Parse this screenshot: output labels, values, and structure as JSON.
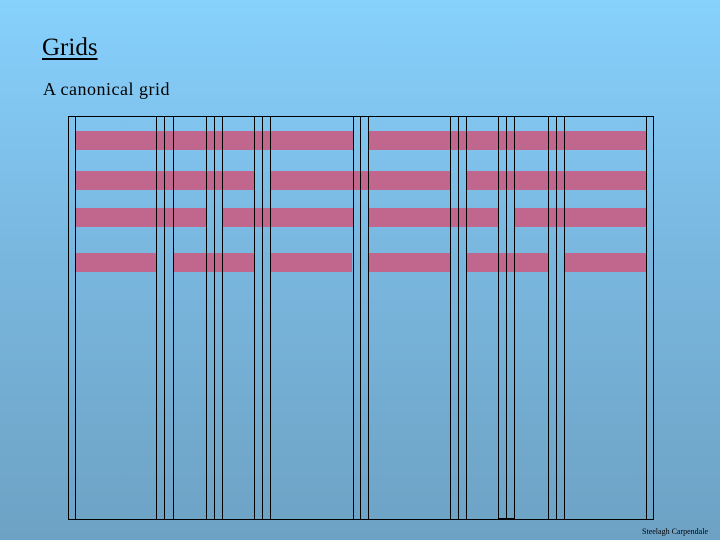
{
  "slide": {
    "title": "Grids",
    "subtitle": "A canonical grid",
    "credit": "Steelagh Carpendale"
  },
  "colors": {
    "bar": "#c1668c",
    "line": "#000000",
    "background_top": "#86d1fd",
    "background_bottom": "#6da2c4"
  }
}
